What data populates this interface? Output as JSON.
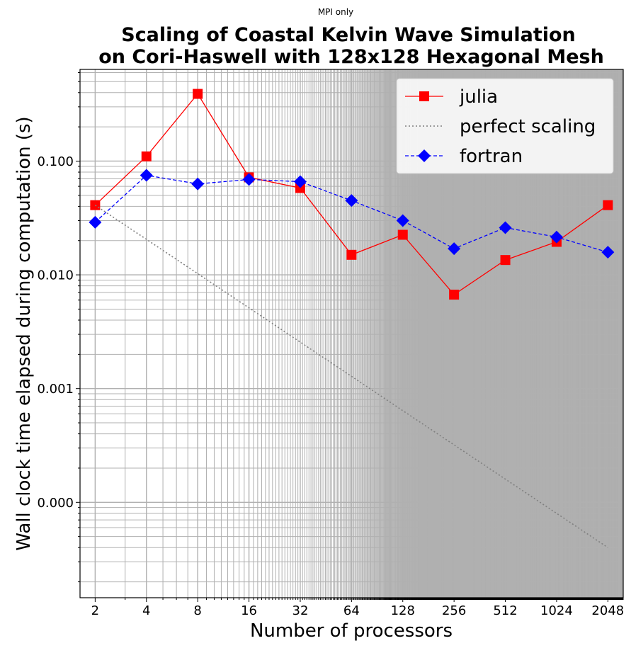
{
  "chart_data": {
    "type": "line",
    "suptitle": "MPI only",
    "title_lines": [
      "Scaling of Coastal Kelvin Wave Simulation",
      "on Cori-Haswell with 128x128 Hexagonal Mesh"
    ],
    "xlabel": "Number of processors",
    "ylabel": "Wall clock time elapsed during computation (s)",
    "x_scale": "log2",
    "y_scale": "log10",
    "x": [
      2,
      4,
      8,
      16,
      32,
      64,
      128,
      256,
      512,
      1024,
      2048
    ],
    "x_tick_labels": [
      "2",
      "4",
      "8",
      "16",
      "32",
      "64",
      "128",
      "256",
      "512",
      "1024",
      "2048"
    ],
    "y_ticks": [
      0.0001,
      0.001,
      0.01,
      0.1
    ],
    "y_tick_labels": [
      "0.000",
      "0.001",
      "0.010",
      "0.100"
    ],
    "xlim": [
      1.63,
      2520
    ],
    "ylim": [
      1.45e-05,
      0.64
    ],
    "grid": true,
    "legend_position": "upper right",
    "series": [
      {
        "name": "julia",
        "color": "#ff0000",
        "line_style": "solid",
        "marker": "square",
        "values": [
          0.041,
          0.11,
          0.39,
          0.072,
          0.058,
          0.015,
          0.0225,
          0.0067,
          0.0135,
          0.0195,
          0.041
        ]
      },
      {
        "name": "perfect scaling",
        "color": "#808080",
        "line_style": "dotted",
        "marker": "none",
        "values": [
          0.041,
          0.0205,
          0.01025,
          0.005125,
          0.0025625,
          0.00128125,
          0.000640625,
          0.0003203125,
          0.00016015625,
          8.0078125e-05,
          4.00390625e-05
        ]
      },
      {
        "name": "fortran",
        "color": "#0000ff",
        "line_style": "dashed",
        "marker": "diamond",
        "values": [
          0.029,
          0.075,
          0.063,
          0.069,
          0.066,
          0.045,
          0.03,
          0.017,
          0.026,
          0.0215,
          0.0158
        ]
      }
    ]
  }
}
